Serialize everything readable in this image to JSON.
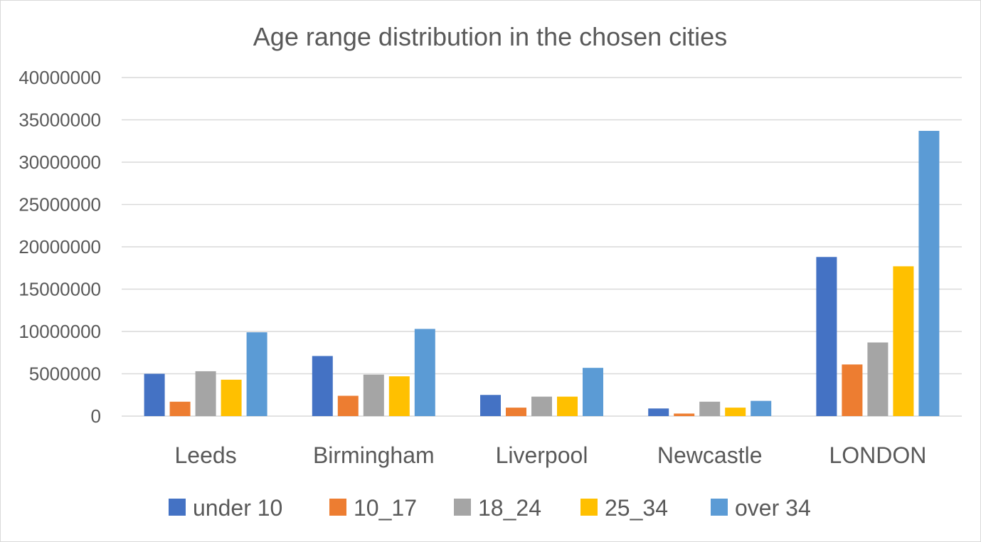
{
  "chart_data": {
    "type": "bar",
    "title": "Age range distribution in the chosen cities",
    "xlabel": "",
    "ylabel": "",
    "categories": [
      "Leeds",
      "Birmingham",
      "Liverpool",
      "Newcastle",
      "LONDON"
    ],
    "series": [
      {
        "name": "under 10",
        "color": "#4472C4",
        "values": [
          5000000,
          7100000,
          2500000,
          900000,
          18800000
        ]
      },
      {
        "name": "10_17",
        "color": "#ED7D31",
        "values": [
          1700000,
          2400000,
          1000000,
          300000,
          6100000
        ]
      },
      {
        "name": "18_24",
        "color": "#A5A5A5",
        "values": [
          5300000,
          4900000,
          2300000,
          1700000,
          8700000
        ]
      },
      {
        "name": "25_34",
        "color": "#FFC000",
        "values": [
          4300000,
          4700000,
          2300000,
          1000000,
          17700000
        ]
      },
      {
        "name": "over 34",
        "color": "#5B9BD5",
        "values": [
          9900000,
          10300000,
          5700000,
          1800000,
          33700000
        ]
      }
    ],
    "ylim": [
      0,
      40000000
    ],
    "yticks": [
      "0",
      "5000000",
      "10000000",
      "15000000",
      "20000000",
      "25000000",
      "30000000",
      "35000000",
      "40000000"
    ],
    "grid": true,
    "legend_position": "bottom"
  }
}
